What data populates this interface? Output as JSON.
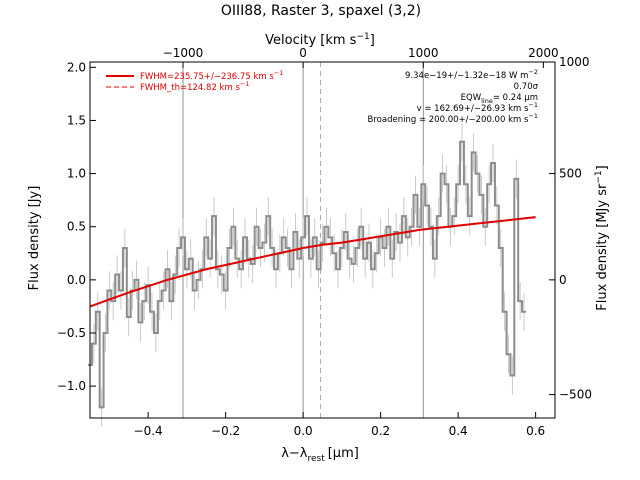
{
  "chart_data": {
    "type": "line",
    "title": "OIII88, Raster 3, spaxel (3,2)",
    "xlabel": "λ−λ",
    "xlabel_sub": "rest",
    "xlabel_unit": "[μm]",
    "ylabel": "Flux density [Jy]",
    "top_xlabel": "Velocity [km s",
    "top_xlabel_sup": "−1",
    "top_xlabel_end": "]",
    "right_ylabel": "Flux density [MJy sr",
    "right_ylabel_sup": "−1",
    "right_ylabel_end": "]",
    "xlim": [
      -0.55,
      0.65
    ],
    "ylim": [
      -1.3,
      2.05
    ],
    "x_ticks": [
      -0.4,
      -0.2,
      0.0,
      0.2,
      0.4,
      0.6
    ],
    "x_tick_labels": [
      "−0.4",
      "−0.2",
      "0.0",
      "0.2",
      "0.4",
      "0.6"
    ],
    "y_ticks": [
      -1.0,
      -0.5,
      0.0,
      0.5,
      1.0,
      1.5,
      2.0
    ],
    "y_tick_labels": [
      "−1.0",
      "−0.5",
      "0.0",
      "0.5",
      "1.0",
      "1.5",
      "2.0"
    ],
    "top_ticks_x": [
      -0.31,
      0.0,
      0.31,
      0.62
    ],
    "top_tick_labels": [
      "−1000",
      "0",
      "1000",
      "2000"
    ],
    "right_ticks_y": [
      -1.08,
      0.0,
      1.0
    ],
    "right_tick_labels": [
      "−500",
      "0",
      "500",
      "1000"
    ],
    "right_ticks_y_all": [
      -1.08,
      0.0,
      1.0,
      2.05
    ],
    "vlines_solid": [
      -0.31,
      0.0,
      0.31
    ],
    "vline_dashed": 0.045,
    "legend": {
      "solid": "FWHM=235.75+/−236.75 km s",
      "solid_sup": "−1",
      "dashed": "FWHM_th=124.82 km s",
      "dashed_sup": "−1"
    },
    "annotations": [
      "9.34e−19+/−1.32e−18 W m",
      "0.70σ",
      "EQW",
      "= 0.24 μm",
      "v = 162.69+/−26.93 km s",
      "Broadening = 200.00+/−200.00 km s"
    ],
    "annotation_sups": [
      "−2",
      "",
      "",
      "",
      "−1",
      "−1"
    ],
    "eqw_sub": "line",
    "data_series": {
      "name": "",
      "x": [
        -0.55,
        -0.54,
        -0.53,
        -0.52,
        -0.51,
        -0.5,
        -0.49,
        -0.48,
        -0.47,
        -0.46,
        -0.45,
        -0.44,
        -0.43,
        -0.42,
        -0.41,
        -0.4,
        -0.39,
        -0.38,
        -0.37,
        -0.36,
        -0.35,
        -0.34,
        -0.33,
        -0.32,
        -0.31,
        -0.3,
        -0.29,
        -0.28,
        -0.27,
        -0.26,
        -0.25,
        -0.24,
        -0.23,
        -0.22,
        -0.21,
        -0.2,
        -0.19,
        -0.18,
        -0.17,
        -0.16,
        -0.15,
        -0.14,
        -0.13,
        -0.12,
        -0.11,
        -0.1,
        -0.09,
        -0.08,
        -0.07,
        -0.06,
        -0.05,
        -0.04,
        -0.03,
        -0.02,
        -0.01,
        0.0,
        0.01,
        0.02,
        0.03,
        0.04,
        0.05,
        0.06,
        0.07,
        0.08,
        0.09,
        0.1,
        0.11,
        0.12,
        0.13,
        0.14,
        0.15,
        0.16,
        0.17,
        0.18,
        0.19,
        0.2,
        0.21,
        0.22,
        0.23,
        0.24,
        0.25,
        0.26,
        0.27,
        0.28,
        0.29,
        0.3,
        0.31,
        0.32,
        0.33,
        0.34,
        0.35,
        0.36,
        0.37,
        0.38,
        0.39,
        0.4,
        0.41,
        0.42,
        0.43,
        0.44,
        0.45,
        0.46,
        0.47,
        0.48,
        0.49,
        0.5,
        0.51,
        0.52,
        0.53,
        0.54,
        0.55,
        0.56,
        0.57
      ],
      "y": [
        -0.8,
        -0.6,
        -0.3,
        -1.2,
        -0.5,
        -0.1,
        -0.2,
        0.05,
        -0.1,
        0.3,
        -0.35,
        -0.1,
        0.0,
        -0.4,
        -0.2,
        -0.05,
        -0.3,
        -0.5,
        -0.2,
        -0.1,
        0.1,
        -0.2,
        0.05,
        0.3,
        0.4,
        0.1,
        0.2,
        -0.1,
        0.0,
        0.1,
        0.4,
        0.2,
        0.6,
        0.1,
        0.05,
        -0.1,
        0.3,
        0.5,
        0.2,
        0.1,
        0.4,
        0.2,
        0.15,
        0.5,
        0.3,
        0.35,
        0.6,
        0.3,
        0.1,
        0.25,
        0.4,
        0.3,
        0.1,
        0.45,
        0.2,
        0.4,
        0.6,
        0.2,
        0.4,
        0.1,
        0.35,
        0.5,
        0.4,
        0.25,
        0.1,
        0.3,
        0.45,
        0.2,
        0.15,
        0.3,
        0.5,
        0.2,
        0.35,
        0.1,
        0.25,
        0.4,
        0.3,
        0.5,
        0.2,
        0.45,
        0.35,
        0.6,
        0.4,
        0.5,
        0.8,
        0.5,
        0.9,
        0.7,
        0.5,
        0.2,
        0.6,
        1.0,
        0.9,
        0.5,
        0.6,
        0.9,
        1.3,
        0.9,
        0.6,
        1.2,
        1.0,
        0.8,
        0.5,
        0.9,
        1.1,
        0.7,
        0.3,
        -0.3,
        -0.7,
        -0.9,
        0.95,
        -0.2,
        -0.3
      ],
      "err": 0.18
    },
    "fit_series": {
      "name": "",
      "x": [
        -0.55,
        -0.45,
        -0.35,
        -0.25,
        -0.15,
        -0.05,
        0.0,
        0.05,
        0.1,
        0.15,
        0.2,
        0.25,
        0.3,
        0.35,
        0.45,
        0.55,
        0.6
      ],
      "y": [
        -0.25,
        -0.12,
        0.0,
        0.1,
        0.18,
        0.26,
        0.3,
        0.33,
        0.35,
        0.38,
        0.41,
        0.44,
        0.47,
        0.49,
        0.53,
        0.57,
        0.59
      ]
    }
  },
  "colors": {
    "data": "#8c8c8c",
    "errorbar": "#bdbdbd",
    "fit": "#e00000",
    "grid_solid": "#777777",
    "grid_dashed": "#999999",
    "axis": "#000000"
  }
}
